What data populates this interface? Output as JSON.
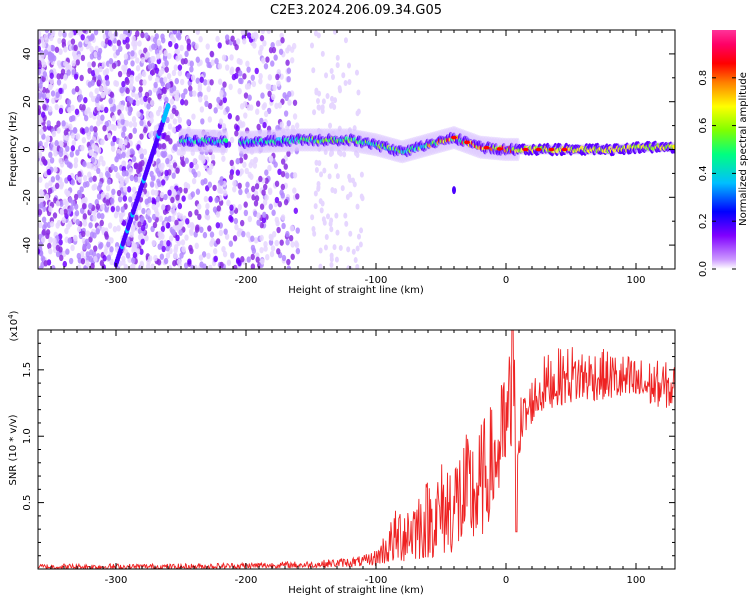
{
  "title": "C2E3.2024.206.09.34.G05",
  "chart_data": [
    {
      "type": "heatmap",
      "xlabel": "Height of straight line (km)",
      "ylabel": "Frequency (Hz)",
      "xlim": [
        -360,
        130
      ],
      "ylim": [
        -50,
        50
      ],
      "x_ticks": [
        -300,
        -200,
        -100,
        0,
        100
      ],
      "y_ticks": [
        -40,
        -20,
        0,
        20,
        40
      ],
      "grid": false,
      "colorbar": {
        "label": "Normalized spectral amplitude",
        "range": [
          0.0,
          1.0
        ],
        "ticks": [
          0.0,
          0.2,
          0.4,
          0.6,
          0.8
        ],
        "colors": [
          "#ffffff",
          "#cc99ff",
          "#8000ff",
          "#0000ff",
          "#00bfff",
          "#00ff80",
          "#80ff00",
          "#ffff00",
          "#ff8000",
          "#ff0000",
          "#ff0066",
          "#ff3399"
        ]
      },
      "features": {
        "carrier_line": {
          "x": [
            -250,
            -200,
            -160,
            -120,
            -100,
            -80,
            -60,
            -40,
            -20,
            0,
            20,
            50,
            80,
            110,
            130
          ],
          "y": [
            4,
            3,
            4,
            4,
            2,
            -1,
            2,
            5,
            1,
            0,
            0,
            0,
            0,
            1,
            1
          ]
        },
        "sloped_line": {
          "x": [
            -300,
            -260
          ],
          "y": [
            -48,
            18
          ]
        }
      }
    },
    {
      "type": "line",
      "xlabel": "Height of straight line (km)",
      "ylabel": "SNR (10 * v/v)",
      "y_multiplier": "(x10",
      "y_multiplier_exp": "4",
      "y_multiplier_close": ")",
      "xlim": [
        -360,
        130
      ],
      "ylim": [
        0,
        1.8
      ],
      "x_ticks": [
        -300,
        -200,
        -100,
        0,
        100
      ],
      "y_ticks": [
        0.5,
        1.0,
        1.5
      ],
      "y_tick_labels": [
        "0.5",
        "1.0",
        "1.5"
      ],
      "line_color": "#ee2222",
      "series_envelope": {
        "x": [
          -360,
          -250,
          -150,
          -110,
          -100,
          -80,
          -60,
          -40,
          -20,
          -5,
          5,
          10,
          20,
          30,
          50,
          80,
          100,
          130
        ],
        "min": [
          0.0,
          0.0,
          0.01,
          0.02,
          0.03,
          0.05,
          0.08,
          0.12,
          0.2,
          0.55,
          0.75,
          0.85,
          1.1,
          1.2,
          1.25,
          1.28,
          1.25,
          1.2
        ],
        "max": [
          0.04,
          0.04,
          0.06,
          0.1,
          0.15,
          0.55,
          0.7,
          0.95,
          1.1,
          1.35,
          1.8,
          1.3,
          1.45,
          1.62,
          1.7,
          1.65,
          1.6,
          1.55
        ]
      }
    }
  ]
}
